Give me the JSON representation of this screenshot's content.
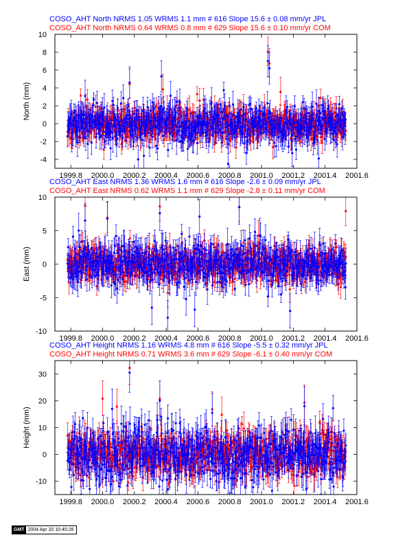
{
  "chart_data": [
    {
      "type": "scatter",
      "title_lines": [
        "COSO_AHT North NRMS 1.05 WRMS  1.1 mm # 616 Slope   15.6 ±  0.08 mm/yr JPL",
        "COSO_AHT North NRMS 0.64 WRMS  0.8 mm # 629 Slope   15.6 ±  0.10 mm/yr COM"
      ],
      "ylabel": "North (mm)",
      "xlabel": "",
      "xlim": [
        1999.7,
        2001.6
      ],
      "ylim": [
        -5,
        10
      ],
      "xticks": [
        1999.8,
        2000.0,
        2000.2,
        2000.4,
        2000.6,
        2000.8,
        2001.0,
        2001.2,
        2001.4,
        2001.6
      ],
      "xtick_labels": [
        "1999.8",
        "2000.0",
        "2000.2",
        "2000.4",
        "2000.6",
        "2000.8",
        "2001.0",
        "2001.2",
        "2001.4",
        "2001.6"
      ],
      "yticks": [
        -4,
        -2,
        0,
        2,
        4,
        6,
        8,
        10
      ],
      "ytick_labels": [
        "-4",
        "-2",
        "0",
        "2",
        "4",
        "6",
        "8",
        "10"
      ],
      "grid": false,
      "x_range": [
        1999.78,
        2001.53
      ],
      "series": [
        {
          "name": "COM",
          "color": "#ff0000",
          "marker": "triangle",
          "nrms": 0.64,
          "wrms_mm": 0.8,
          "count": 629,
          "slope": 15.6,
          "slope_sigma": 0.1,
          "noise_sd": 0.9,
          "err_mean": 1.0,
          "seed": 11,
          "outliers": [
            {
              "x": 2000.17,
              "y": 4.5
            },
            {
              "x": 2001.04,
              "y": 8.1
            },
            {
              "x": 2001.05,
              "y": 6.8
            },
            {
              "x": 2000.38,
              "y": 3.9
            },
            {
              "x": 2001.12,
              "y": 3.6
            }
          ]
        },
        {
          "name": "JPL",
          "color": "#0000ff",
          "marker": "circle",
          "nrms": 1.05,
          "wrms_mm": 1.1,
          "count": 616,
          "slope": 15.6,
          "slope_sigma": 0.08,
          "noise_sd": 1.1,
          "err_mean": 1.1,
          "seed": 23,
          "outliers": [
            {
              "x": 2000.17,
              "y": 4.6
            },
            {
              "x": 2001.04,
              "y": 7.0
            },
            {
              "x": 2001.05,
              "y": 6.2
            },
            {
              "x": 2000.37,
              "y": 5.3
            },
            {
              "x": 1999.89,
              "y": 3.1
            },
            {
              "x": 2000.79,
              "y": -4.5
            },
            {
              "x": 2001.36,
              "y": -3.9
            },
            {
              "x": 2000.26,
              "y": -3.6
            }
          ]
        }
      ]
    },
    {
      "type": "scatter",
      "title_lines": [
        "COSO_AHT East NRMS 1.36 WRMS  1.6 mm # 616 Slope   -2.6 ±  0.09 mm/yr JPL",
        "COSO_AHT East NRMS 0.62 WRMS  1.1 mm # 629 Slope   -2.8 ±  0.11 mm/yr COM"
      ],
      "ylabel": "East (mm)",
      "xlabel": "",
      "xlim": [
        1999.7,
        2001.6
      ],
      "ylim": [
        -10,
        10
      ],
      "xticks": [
        1999.8,
        2000.0,
        2000.2,
        2000.4,
        2000.6,
        2000.8,
        2001.0,
        2001.2,
        2001.4,
        2001.6
      ],
      "xtick_labels": [
        "1999.8",
        "2000.0",
        "2000.2",
        "2000.4",
        "2000.6",
        "2000.8",
        "2001.0",
        "2001.2",
        "2001.4",
        "2001.6"
      ],
      "yticks": [
        -10,
        -5,
        0,
        5,
        10
      ],
      "ytick_labels": [
        "-10",
        "-5",
        "0",
        "5",
        "10"
      ],
      "grid": false,
      "x_range": [
        1999.78,
        2001.53
      ],
      "series": [
        {
          "name": "COM",
          "color": "#ff0000",
          "marker": "triangle",
          "nrms": 0.62,
          "wrms_mm": 1.1,
          "count": 629,
          "slope": -2.8,
          "slope_sigma": 0.11,
          "noise_sd": 1.3,
          "err_mean": 1.4,
          "seed": 37,
          "outliers": [
            {
              "x": 1999.89,
              "y": 8.8
            },
            {
              "x": 2000.36,
              "y": 8.7
            },
            {
              "x": 2000.86,
              "y": 8.6
            },
            {
              "x": 2001.53,
              "y": 8.0
            },
            {
              "x": 2000.03,
              "y": 7.0
            },
            {
              "x": 2000.98,
              "y": 4.3
            },
            {
              "x": 2000.41,
              "y": -4.2
            }
          ]
        },
        {
          "name": "JPL",
          "color": "#0000ff",
          "marker": "circle",
          "nrms": 1.36,
          "wrms_mm": 1.6,
          "count": 616,
          "slope": -2.6,
          "slope_sigma": 0.09,
          "noise_sd": 1.6,
          "err_mean": 1.6,
          "seed": 41,
          "outliers": [
            {
              "x": 1999.89,
              "y": 6.5
            },
            {
              "x": 2000.36,
              "y": 7.6
            },
            {
              "x": 2000.61,
              "y": 7.1
            },
            {
              "x": 2000.86,
              "y": 8.5
            },
            {
              "x": 1999.85,
              "y": 5.0
            },
            {
              "x": 2000.03,
              "y": 6.8
            },
            {
              "x": 2000.99,
              "y": 4.3
            },
            {
              "x": 2000.41,
              "y": -8.0
            },
            {
              "x": 2000.31,
              "y": -6.5
            },
            {
              "x": 2000.58,
              "y": -6.8
            },
            {
              "x": 2001.18,
              "y": -7.0
            }
          ]
        }
      ]
    },
    {
      "type": "scatter",
      "title_lines": [
        "COSO_AHT Height NRMS 1.16 WRMS  4.8 mm # 616 Slope   -5.5 ±  0.32 mm/yr JPL",
        "COSO_AHT Height NRMS 0.71 WRMS  3.6 mm # 629 Slope   -6.1 ±  0.40 mm/yr COM"
      ],
      "ylabel": "Height (mm)",
      "xlabel": "",
      "xlim": [
        1999.7,
        2001.6
      ],
      "ylim": [
        -15,
        35
      ],
      "xticks": [
        1999.8,
        2000.0,
        2000.2,
        2000.4,
        2000.6,
        2000.8,
        2001.0,
        2001.2,
        2001.4,
        2001.6
      ],
      "xtick_labels": [
        "1999.8",
        "2000.0",
        "2000.2",
        "2000.4",
        "2000.6",
        "2000.8",
        "2001.0",
        "2001.2",
        "2001.4",
        "2001.6"
      ],
      "yticks": [
        -10,
        0,
        10,
        20,
        30
      ],
      "ytick_labels": [
        "-10",
        "0",
        "10",
        "20",
        "30"
      ],
      "grid": false,
      "x_range": [
        1999.78,
        2001.53
      ],
      "series": [
        {
          "name": "COM",
          "color": "#ff0000",
          "marker": "triangle",
          "nrms": 0.71,
          "wrms_mm": 3.6,
          "count": 629,
          "slope": -6.1,
          "slope_sigma": 0.4,
          "noise_sd": 4.2,
          "err_mean": 4.0,
          "seed": 53,
          "outliers": [
            {
              "x": 2000.17,
              "y": 32.5
            },
            {
              "x": 2000.36,
              "y": 21.0
            },
            {
              "x": 2000.0,
              "y": 21.0
            },
            {
              "x": 2001.27,
              "y": 19.5
            },
            {
              "x": 2000.69,
              "y": 17.0
            },
            {
              "x": 2000.09,
              "y": 18.0
            },
            {
              "x": 2000.75,
              "y": 15.0
            }
          ]
        },
        {
          "name": "JPL",
          "color": "#0000ff",
          "marker": "circle",
          "nrms": 1.16,
          "wrms_mm": 4.8,
          "count": 616,
          "slope": -5.5,
          "slope_sigma": 0.32,
          "noise_sd": 5.0,
          "err_mean": 4.6,
          "seed": 67,
          "outliers": [
            {
              "x": 2000.17,
              "y": 30.5
            },
            {
              "x": 2000.36,
              "y": 20.0
            },
            {
              "x": 2001.27,
              "y": 18.0
            },
            {
              "x": 2000.06,
              "y": 17.0
            },
            {
              "x": 2000.69,
              "y": 15.5
            },
            {
              "x": 2000.41,
              "y": -13.0
            },
            {
              "x": 2000.9,
              "y": -12.0
            }
          ]
        }
      ]
    }
  ],
  "footer": {
    "logo_text": "GMT",
    "timestamp": "2004 Apr 20 10:45:26"
  }
}
